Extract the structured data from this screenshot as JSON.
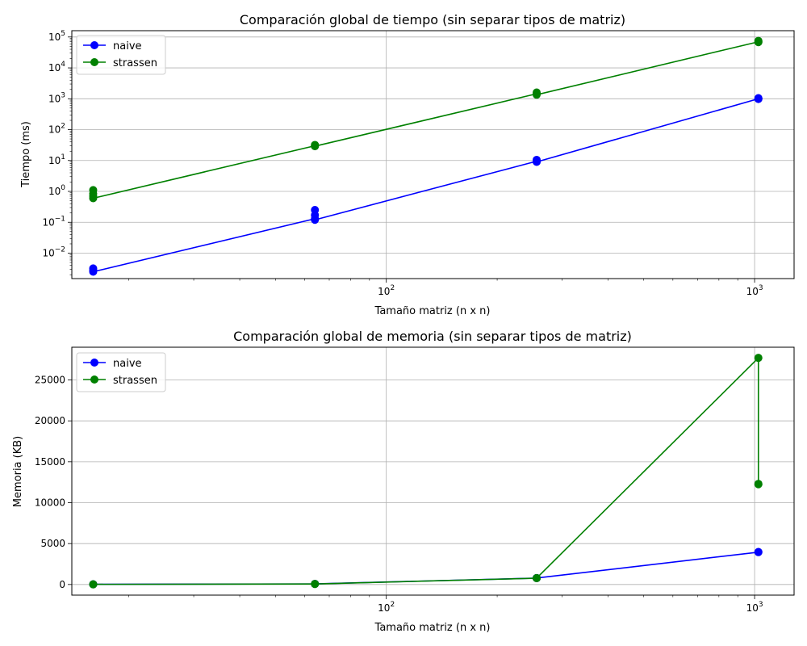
{
  "chart_data": [
    {
      "type": "line",
      "title": "Comparación global de tiempo (sin separar tipos de matriz)",
      "xlabel": "Tamaño matriz (n x n)",
      "ylabel": "Tiempo (ms)",
      "xscale": "log",
      "yscale": "log",
      "xlim": [
        14,
        1280
      ],
      "ylim": [
        0.0015,
        160000
      ],
      "x_ticks": [
        {
          "value": 100,
          "label": "10^2"
        },
        {
          "value": 1000,
          "label": "10^3"
        }
      ],
      "y_ticks": [
        {
          "value": 0.01,
          "label": "10^-2"
        },
        {
          "value": 0.1,
          "label": "10^-1"
        },
        {
          "value": 1,
          "label": "10^0"
        },
        {
          "value": 10,
          "label": "10^1"
        },
        {
          "value": 100,
          "label": "10^2"
        },
        {
          "value": 1000,
          "label": "10^3"
        },
        {
          "value": 10000,
          "label": "10^4"
        },
        {
          "value": 100000,
          "label": "10^5"
        }
      ],
      "grid": true,
      "legend_position": "top-left",
      "series": [
        {
          "name": "naive",
          "color": "#0000ff",
          "x": [
            16,
            16,
            16,
            64,
            64,
            64,
            64,
            256,
            256,
            256,
            1024,
            1024,
            1024
          ],
          "y": [
            0.0028,
            0.0032,
            0.0025,
            0.13,
            0.25,
            0.17,
            0.12,
            9.5,
            10.5,
            9.0,
            1000,
            980,
            1050
          ]
        },
        {
          "name": "strassen",
          "color": "#008000",
          "x": [
            16,
            16,
            16,
            16,
            64,
            64,
            64,
            256,
            256,
            256,
            1024,
            1024,
            1024
          ],
          "y": [
            0.85,
            1.1,
            0.7,
            0.6,
            30,
            32,
            29,
            1450,
            1600,
            1350,
            70000,
            75000,
            68000
          ]
        }
      ]
    },
    {
      "type": "line",
      "title": "Comparación global de memoria (sin separar tipos de matriz)",
      "xlabel": "Tamaño matriz (n x n)",
      "ylabel": "Memoria (KB)",
      "xscale": "log",
      "yscale": "linear",
      "xlim": [
        14,
        1280
      ],
      "ylim": [
        -1300,
        29000
      ],
      "x_ticks": [
        {
          "value": 100,
          "label": "10^2"
        },
        {
          "value": 1000,
          "label": "10^3"
        }
      ],
      "y_ticks": [
        {
          "value": 0,
          "label": "0"
        },
        {
          "value": 5000,
          "label": "5000"
        },
        {
          "value": 10000,
          "label": "10000"
        },
        {
          "value": 15000,
          "label": "15000"
        },
        {
          "value": 20000,
          "label": "20000"
        },
        {
          "value": 25000,
          "label": "25000"
        }
      ],
      "grid": true,
      "legend_position": "top-left",
      "series": [
        {
          "name": "naive",
          "color": "#0000ff",
          "x": [
            16,
            16,
            64,
            64,
            256,
            256,
            1024,
            1024
          ],
          "y": [
            20,
            25,
            70,
            75,
            780,
            790,
            3950,
            3980
          ]
        },
        {
          "name": "strassen",
          "color": "#008000",
          "x": [
            16,
            16,
            64,
            64,
            256,
            256,
            1024,
            1024,
            1024
          ],
          "y": [
            15,
            20,
            60,
            65,
            770,
            780,
            27700,
            12250,
            12300
          ]
        }
      ]
    }
  ]
}
